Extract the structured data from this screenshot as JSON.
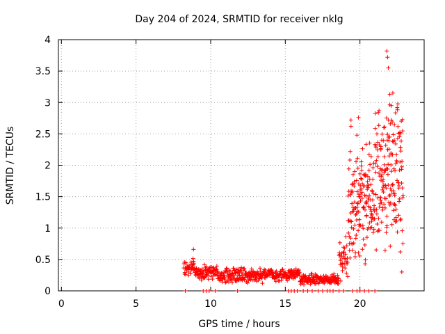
{
  "chart_data": {
    "type": "scatter",
    "title": "Day 204 of 2024, SRMTID for receiver nklg",
    "xlabel": "GPS time / hours",
    "ylabel": "SRMTID / TECUs",
    "xlim": [
      -0.2,
      24.3
    ],
    "ylim": [
      0,
      4
    ],
    "xticks": [
      0,
      5,
      10,
      15,
      20
    ],
    "yticks": [
      0,
      0.5,
      1,
      1.5,
      2,
      2.5,
      3,
      3.5,
      4
    ],
    "xtick_labels": [
      "0",
      "5",
      "10",
      "15",
      "20"
    ],
    "ytick_labels": [
      "0",
      "0.5",
      "1",
      "1.5",
      "2",
      "2.5",
      "3",
      "3.5",
      "4"
    ],
    "grid": true,
    "marker": "+",
    "color": "#ff0000",
    "series": [
      {
        "name": "SRMTID",
        "segments": [
          {
            "x_start": 8.2,
            "x_end": 8.9,
            "y_base": 0.38,
            "y_spread": 0.12
          },
          {
            "x_start": 8.9,
            "x_end": 10.5,
            "y_base": 0.3,
            "y_spread": 0.1
          },
          {
            "x_start": 10.5,
            "x_end": 13.5,
            "y_base": 0.25,
            "y_spread": 0.1
          },
          {
            "x_start": 13.5,
            "x_end": 16.0,
            "y_base": 0.25,
            "y_spread": 0.08
          },
          {
            "x_start": 16.0,
            "x_end": 18.6,
            "y_base": 0.18,
            "y_spread": 0.07
          },
          {
            "x_start": 18.6,
            "x_end": 19.2,
            "y_base": 0.5,
            "y_spread": 0.3
          },
          {
            "x_start": 19.2,
            "x_end": 21.0,
            "y_base": 1.4,
            "y_spread": 0.8
          },
          {
            "x_start": 21.0,
            "x_end": 22.9,
            "y_base": 1.8,
            "y_spread": 0.9
          }
        ],
        "peaks": [
          {
            "x": 8.85,
            "y": 0.66
          },
          {
            "x": 19.4,
            "y": 2.72
          },
          {
            "x": 19.4,
            "y": 2.62
          },
          {
            "x": 19.9,
            "y": 2.76
          },
          {
            "x": 21.4,
            "y": 2.25
          },
          {
            "x": 21.4,
            "y": 2.3
          },
          {
            "x": 21.6,
            "y": 2.6
          },
          {
            "x": 21.8,
            "y": 3.82
          },
          {
            "x": 21.85,
            "y": 3.72
          },
          {
            "x": 21.9,
            "y": 3.55
          },
          {
            "x": 22.0,
            "y": 3.13
          },
          {
            "x": 22.1,
            "y": 2.95
          },
          {
            "x": 22.2,
            "y": 3.15
          },
          {
            "x": 22.3,
            "y": 2.4
          },
          {
            "x": 22.7,
            "y": 0.62
          },
          {
            "x": 22.8,
            "y": 0.3
          }
        ],
        "zero_markers_x": [
          8.3,
          9.5,
          9.7,
          9.9,
          10.3,
          11.8,
          15.2,
          15.4,
          15.6,
          15.8,
          16.2,
          16.5,
          16.8,
          17.2,
          17.5,
          17.8,
          18.0,
          18.2,
          18.6,
          18.9,
          19.5,
          19.8,
          20.0,
          20.3,
          20.6,
          21.0
        ]
      }
    ]
  }
}
